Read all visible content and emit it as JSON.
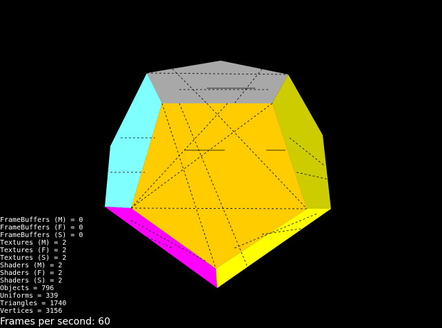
{
  "stats": [
    "FrameBuffers (M) = 0",
    "FrameBuffers (F) = 0",
    "FrameBuffers (S) = 0",
    "Textures (M) = 2",
    "Textures (F) = 2",
    "Textures (S) = 2",
    "Shaders (M) = 2",
    "Shaders (F) = 2",
    "Shaders (S) = 2",
    "Objects = 796",
    "Uniforms = 339",
    "Triangles = 1740",
    "Vertices = 3156"
  ],
  "fps": "Frames per second: 60"
}
